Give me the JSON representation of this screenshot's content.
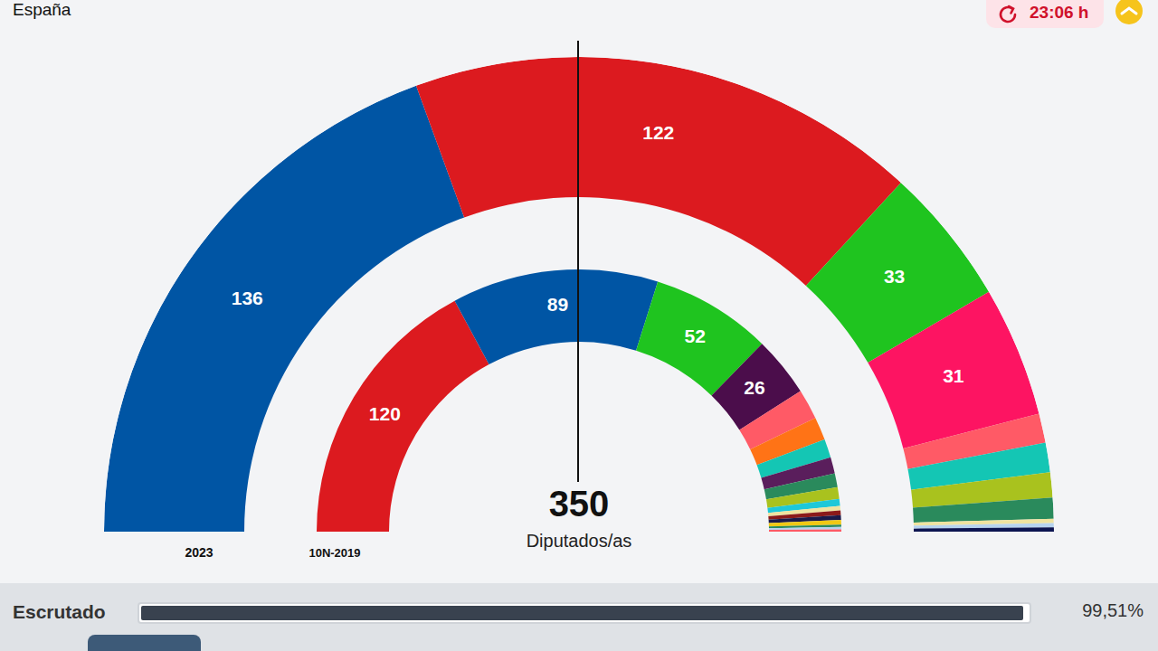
{
  "header": {
    "region": "España",
    "time": "23:06 h"
  },
  "chart_data": {
    "type": "parliament",
    "total": 350,
    "total_label": "Diputados/as",
    "data_labels": true,
    "series": [
      {
        "name": "2023",
        "values": [
          136,
          122,
          33,
          31,
          7,
          7,
          6,
          5,
          1,
          1,
          1
        ],
        "value_labels": [
          "136",
          "122",
          "33",
          "31",
          null,
          null,
          null,
          null,
          null,
          null,
          null
        ],
        "colors": [
          "#0055a4",
          "#dc1a1f",
          "#1fc41f",
          "#fd1462",
          "#ff5a66",
          "#14c6b4",
          "#a9c21e",
          "#2a8a5c",
          "#efe3a0",
          "#b6d3ef",
          "#0c1450"
        ]
      },
      {
        "name": "10N-2019",
        "values": [
          120,
          89,
          52,
          26,
          13,
          10,
          8,
          7,
          6,
          5,
          3,
          2,
          2,
          2,
          2,
          1,
          1,
          1
        ],
        "value_labels": [
          "120",
          "89",
          "52",
          "26",
          null,
          null,
          null,
          null,
          null,
          null,
          null,
          null,
          null,
          null,
          null,
          null,
          null,
          null
        ],
        "colors": [
          "#dc1a1f",
          "#0055a4",
          "#1fc41f",
          "#4b0d4b",
          "#ff5a66",
          "#ff7316",
          "#14c6b4",
          "#5a1e5c",
          "#2a8a5c",
          "#a9c21e",
          "#1ec8d8",
          "#efe3a0",
          "#8b1a1a",
          "#1a1a4a",
          "#f0c814",
          "#2a8a5c",
          "#b6d3ef",
          "#ff5a66"
        ]
      }
    ]
  },
  "progress": {
    "label": "Escrutado",
    "value": 99.51,
    "value_label": "99,51%"
  }
}
